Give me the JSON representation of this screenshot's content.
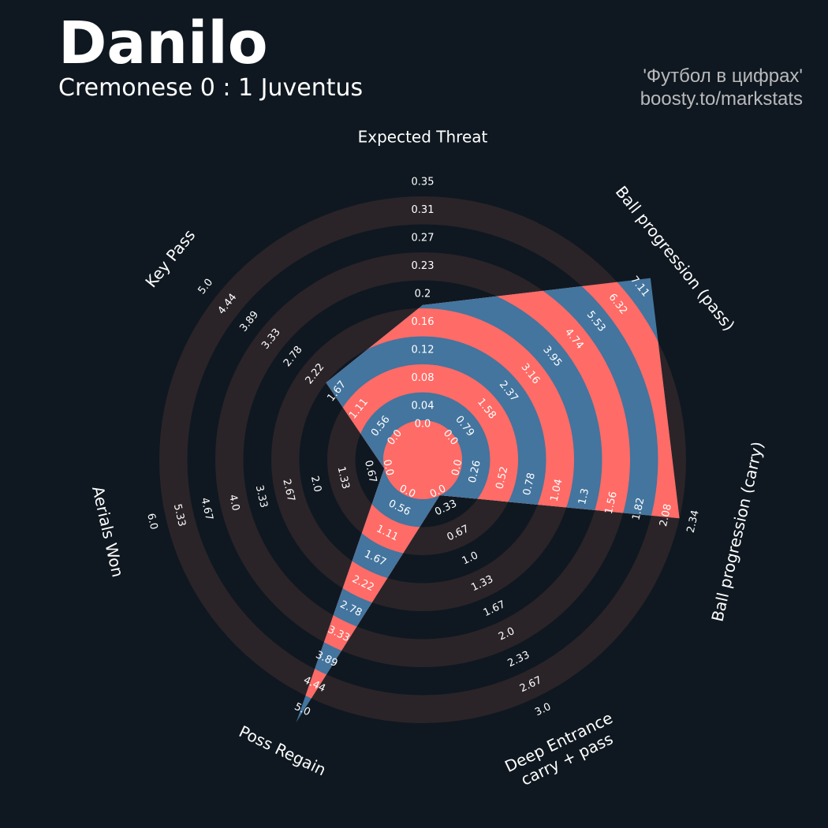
{
  "title": "Danilo",
  "subtitle": "Cremonese 0 : 1 Juventus",
  "credit": [
    "'Футбол в цифрах'",
    "boosty.to/markstats"
  ],
  "colors": {
    "background": "#0f1820",
    "ring": "#2a2428",
    "fill_a": "#ff6b66",
    "fill_b": "#43759e",
    "text": "#ffffff",
    "credit": "#b9b9bb"
  },
  "chart_data": {
    "type": "radar",
    "params": [
      {
        "name": "Expected Threat",
        "value": 0.16,
        "ticks": [
          "0.0",
          "0.04",
          "0.08",
          "0.12",
          "0.16",
          "0.2",
          "0.23",
          "0.27",
          "0.31",
          "0.35"
        ]
      },
      {
        "name": "Ball progression (pass)",
        "value": 7.11,
        "ticks": [
          "0.0",
          "0.79",
          "1.58",
          "2.37",
          "3.16",
          "3.95",
          "4.74",
          "5.53",
          "6.32",
          "7.11"
        ]
      },
      {
        "name": "Ball progression (carry)",
        "value": 2.08,
        "ticks": [
          "0.0",
          "0.26",
          "0.52",
          "0.78",
          "1.04",
          "1.3",
          "1.56",
          "1.82",
          "2.08",
          "2.34"
        ]
      },
      {
        "name": "Deep Entrance\ncarry + pass",
        "value": 0.0,
        "ticks": [
          "0.0",
          "0.33",
          "0.67",
          "1.0",
          "1.33",
          "1.67",
          "2.0",
          "2.33",
          "2.67",
          "3.0"
        ]
      },
      {
        "name": "Poss Regain",
        "value": 5.0,
        "ticks": [
          "0.0",
          "0.56",
          "1.11",
          "1.67",
          "2.22",
          "2.78",
          "3.33",
          "3.89",
          "4.44",
          "5.0"
        ]
      },
      {
        "name": "Aerials Won",
        "value": 0.0,
        "ticks": [
          "0.0",
          "0.67",
          "1.33",
          "2.0",
          "2.67",
          "3.33",
          "4.0",
          "4.67",
          "5.33",
          "6.0"
        ]
      },
      {
        "name": "Key Pass",
        "value": 1.67,
        "ticks": [
          "0.0",
          "0.56",
          "1.11",
          "1.67",
          "2.22",
          "2.78",
          "3.33",
          "3.89",
          "4.44",
          "5.0"
        ]
      }
    ]
  }
}
